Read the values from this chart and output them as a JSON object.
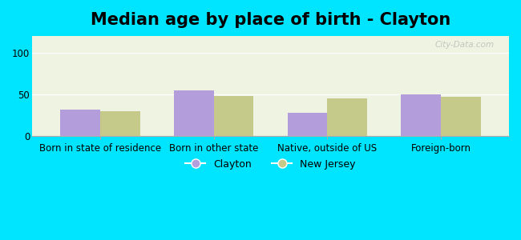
{
  "title": "Median age by place of birth - Clayton",
  "categories": [
    "Born in state of residence",
    "Born in other state",
    "Native, outside of US",
    "Foreign-born"
  ],
  "clayton_values": [
    32,
    55,
    28,
    50
  ],
  "nj_values": [
    30,
    48,
    45,
    47
  ],
  "clayton_color": "#b39ddb",
  "nj_color": "#c5c98a",
  "background_outer": "#00e5ff",
  "background_plot": "#eef3e2",
  "ylim": [
    0,
    120
  ],
  "yticks": [
    0,
    50,
    100
  ],
  "bar_width": 0.35,
  "legend_labels": [
    "Clayton",
    "New Jersey"
  ],
  "watermark": "City-Data.com",
  "title_fontsize": 15,
  "tick_fontsize": 8.5,
  "legend_fontsize": 9
}
